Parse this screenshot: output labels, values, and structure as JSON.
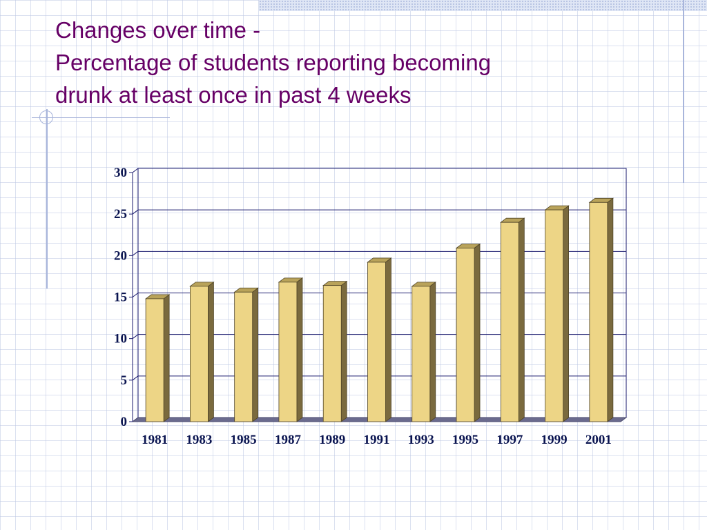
{
  "slide": {
    "title_line1": "Changes over time -",
    "title_line2": "Percentage of students reporting becoming",
    "title_line3": "drunk at least once in past 4 weeks"
  },
  "colors": {
    "title": "#660066",
    "bar_front": "#edd586",
    "bar_side": "#7a6a3e",
    "bar_top": "#b9a35a",
    "floor": "#6b6b8e",
    "plot_frame": "#1a1a6e",
    "axis_text": "#0a1450"
  },
  "chart_data": {
    "type": "bar",
    "style": "3d-column",
    "categories": [
      "1981",
      "1983",
      "1985",
      "1987",
      "1989",
      "1991",
      "1993",
      "1995",
      "1997",
      "1999",
      "2001"
    ],
    "values": [
      14.8,
      16.3,
      15.6,
      16.8,
      16.4,
      19.2,
      16.3,
      20.9,
      24.0,
      25.5,
      26.4
    ],
    "title": "",
    "xlabel": "",
    "ylabel": "",
    "ylim": [
      0,
      30
    ],
    "yticks": [
      "0",
      "5",
      "10",
      "15",
      "20",
      "25",
      "30"
    ],
    "grid": true,
    "legend": "none"
  }
}
